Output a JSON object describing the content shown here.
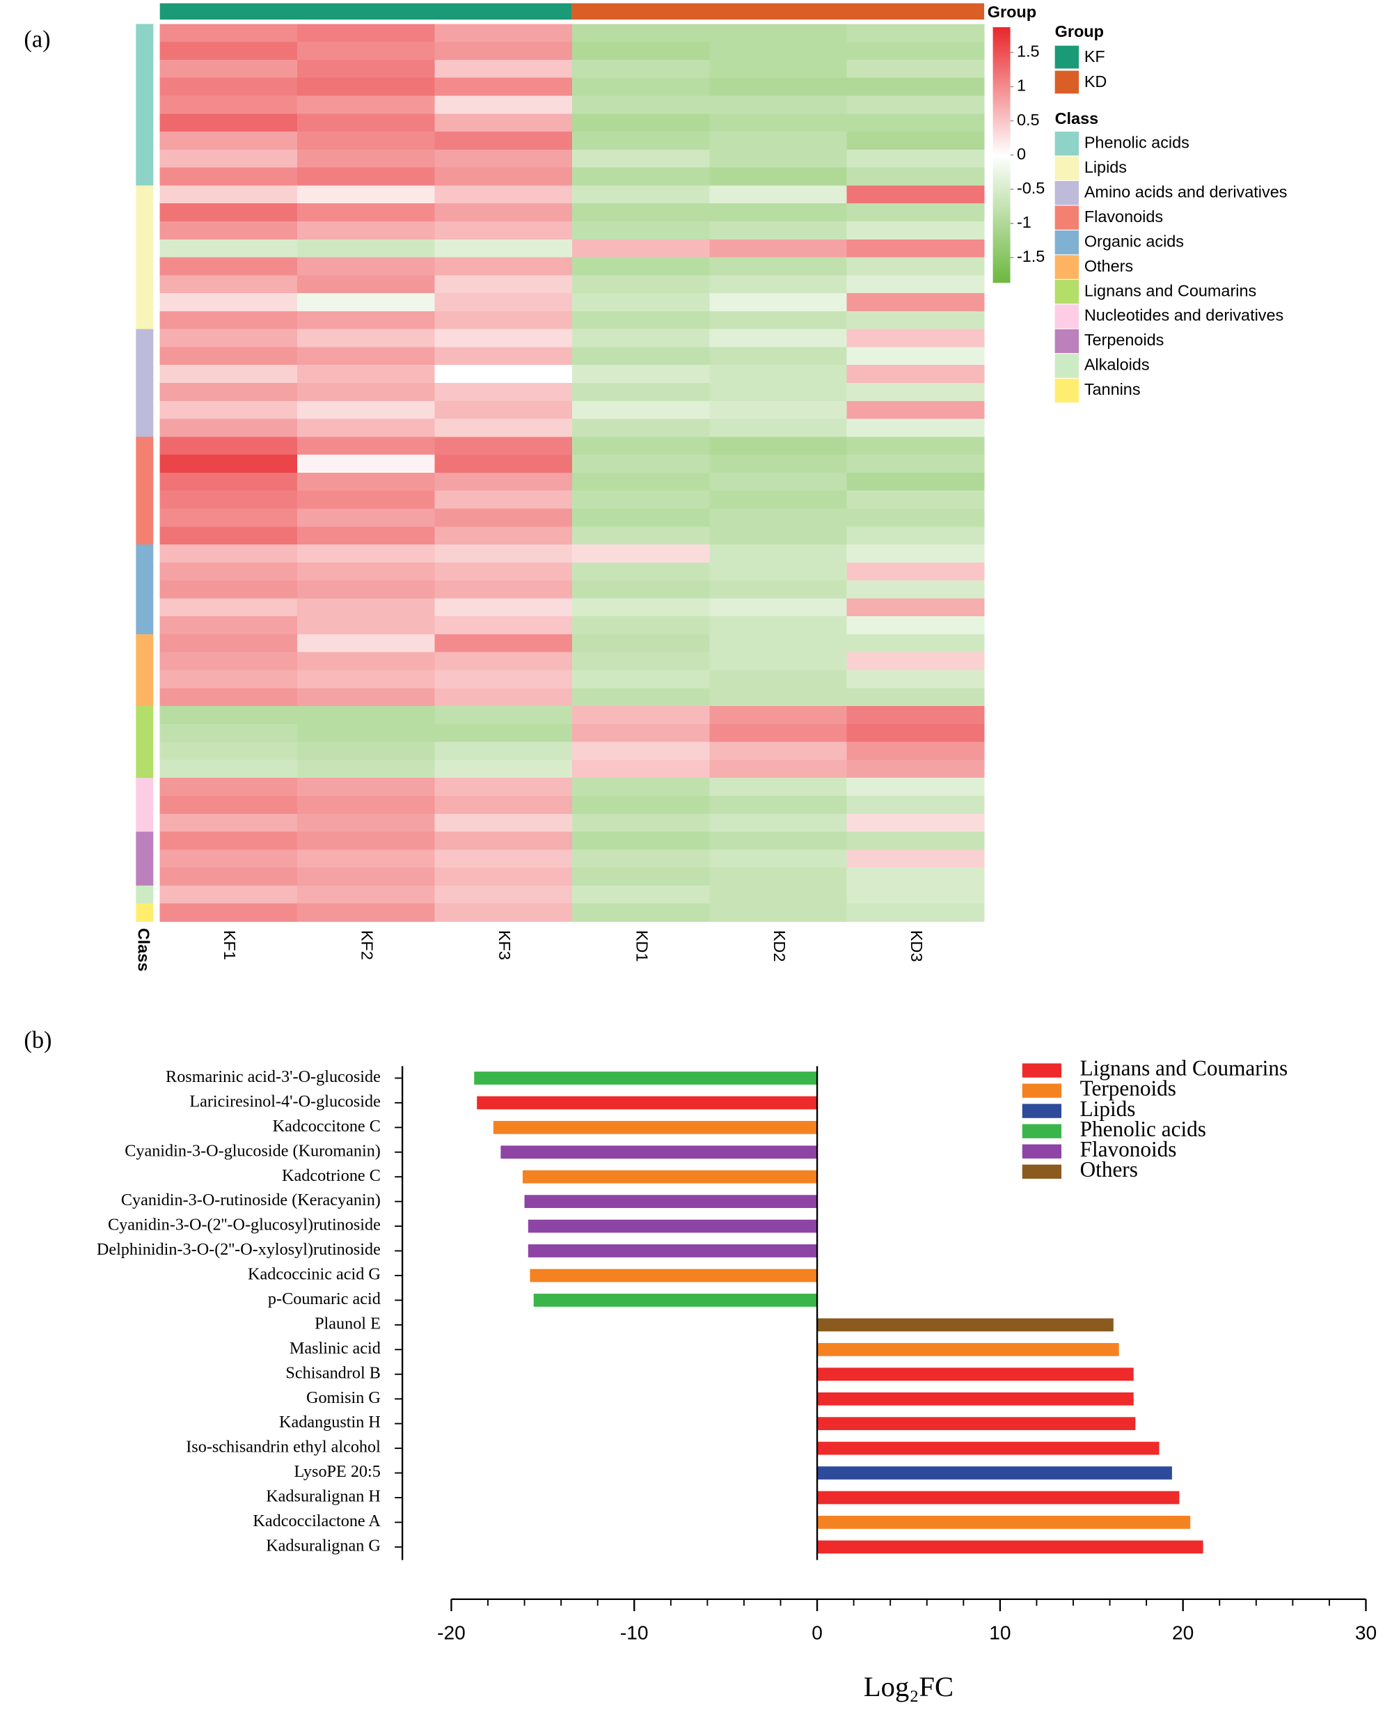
{
  "panel_labels": [
    "(a)",
    "(b)"
  ],
  "chart_data": [
    {
      "type": "heatmap",
      "group_title": "Group",
      "class_title": "Class",
      "groups": [
        {
          "name": "KF",
          "color": "#1a9a76",
          "columns": [
            "KF1",
            "KF2",
            "KF3"
          ]
        },
        {
          "name": "KD",
          "color": "#d95f27",
          "columns": [
            "KD1",
            "KD2",
            "KD3"
          ]
        }
      ],
      "zlim": [
        -1.87,
        1.87
      ],
      "zticks": [
        1.5,
        1,
        0.5,
        0,
        -0.5,
        -1,
        -1.5
      ],
      "colors": [
        "#6cb83f",
        "#ffffff",
        "#e8262a"
      ],
      "classes": [
        {
          "name": "Phenolic acids",
          "color": "#8dd3c7",
          "rows": [
            [
              1.0,
              1.1,
              0.8,
              -0.9,
              -0.9,
              -0.8
            ],
            [
              1.2,
              1.0,
              0.9,
              -1.0,
              -0.9,
              -0.9
            ],
            [
              0.9,
              1.1,
              0.5,
              -0.8,
              -0.9,
              -0.7
            ],
            [
              1.1,
              1.2,
              1.0,
              -0.9,
              -1.0,
              -1.0
            ],
            [
              1.0,
              0.9,
              0.3,
              -0.8,
              -0.8,
              -0.7
            ],
            [
              1.3,
              1.1,
              0.7,
              -1.0,
              -0.9,
              -0.9
            ],
            [
              0.8,
              1.0,
              1.1,
              -0.9,
              -0.8,
              -1.0
            ],
            [
              0.6,
              0.9,
              0.8,
              -0.6,
              -0.8,
              -0.6
            ],
            [
              1.0,
              1.1,
              0.9,
              -0.9,
              -1.0,
              -0.8
            ]
          ]
        },
        {
          "name": "Lipids",
          "color": "#f9f5b8",
          "rows": [
            [
              0.4,
              0.2,
              0.5,
              -0.6,
              -0.4,
              1.2
            ],
            [
              1.2,
              1.0,
              0.8,
              -0.9,
              -0.9,
              -0.8
            ],
            [
              0.9,
              0.7,
              0.6,
              -0.8,
              -0.7,
              -0.5
            ],
            [
              -0.5,
              -0.6,
              -0.4,
              0.6,
              0.8,
              1.0
            ],
            [
              1.0,
              0.8,
              0.7,
              -0.9,
              -0.8,
              -0.6
            ],
            [
              0.7,
              0.9,
              0.4,
              -0.7,
              -0.6,
              -0.4
            ],
            [
              0.3,
              -0.2,
              0.5,
              -0.6,
              -0.3,
              0.9
            ],
            [
              0.9,
              0.8,
              0.6,
              -0.8,
              -0.7,
              -0.6
            ]
          ]
        },
        {
          "name": "Amino acids and derivatives",
          "color": "#bebada",
          "rows": [
            [
              0.7,
              0.5,
              0.3,
              -0.6,
              -0.4,
              0.5
            ],
            [
              0.9,
              0.8,
              0.6,
              -0.8,
              -0.7,
              -0.3
            ],
            [
              0.4,
              0.6,
              0.0,
              -0.5,
              -0.6,
              0.6
            ],
            [
              0.8,
              0.7,
              0.5,
              -0.7,
              -0.6,
              -0.5
            ],
            [
              0.5,
              0.3,
              0.6,
              -0.4,
              -0.5,
              0.8
            ],
            [
              0.8,
              0.6,
              0.4,
              -0.7,
              -0.6,
              -0.4
            ]
          ]
        },
        {
          "name": "Flavonoids",
          "color": "#f48072",
          "rows": [
            [
              1.3,
              1.0,
              1.1,
              -0.9,
              -1.0,
              -0.9
            ],
            [
              1.6,
              0.1,
              1.2,
              -0.8,
              -0.9,
              -0.8
            ],
            [
              1.2,
              0.9,
              0.8,
              -0.9,
              -0.8,
              -1.0
            ],
            [
              1.1,
              1.0,
              0.6,
              -0.8,
              -0.9,
              -0.7
            ],
            [
              1.0,
              0.8,
              0.9,
              -0.9,
              -0.8,
              -0.8
            ],
            [
              1.2,
              1.0,
              0.7,
              -0.7,
              -0.8,
              -0.6
            ]
          ]
        },
        {
          "name": "Organic acids",
          "color": "#80b1d3",
          "rows": [
            [
              0.6,
              0.5,
              0.4,
              0.3,
              -0.6,
              -0.4
            ],
            [
              0.8,
              0.7,
              0.6,
              -0.7,
              -0.6,
              0.5
            ],
            [
              0.9,
              0.8,
              0.7,
              -0.8,
              -0.7,
              -0.5
            ],
            [
              0.5,
              0.6,
              0.3,
              -0.5,
              -0.4,
              0.7
            ],
            [
              0.8,
              0.6,
              0.5,
              -0.7,
              -0.6,
              -0.3
            ]
          ]
        },
        {
          "name": "Others",
          "color": "#fdb462",
          "rows": [
            [
              0.9,
              0.3,
              1.0,
              -0.8,
              -0.6,
              -0.6
            ],
            [
              0.8,
              0.7,
              0.6,
              -0.7,
              -0.6,
              0.4
            ],
            [
              0.7,
              0.6,
              0.5,
              -0.6,
              -0.7,
              -0.5
            ],
            [
              0.9,
              0.8,
              0.6,
              -0.8,
              -0.7,
              -0.7
            ]
          ]
        },
        {
          "name": "Lignans and Coumarins",
          "color": "#b3de69",
          "rows": [
            [
              -0.9,
              -0.9,
              -0.8,
              0.6,
              0.9,
              1.1
            ],
            [
              -0.8,
              -0.9,
              -0.9,
              0.7,
              1.0,
              1.2
            ],
            [
              -0.7,
              -0.8,
              -0.6,
              0.4,
              0.6,
              0.9
            ],
            [
              -0.6,
              -0.7,
              -0.5,
              0.5,
              0.7,
              0.8
            ]
          ]
        },
        {
          "name": "Nucleotides and derivatives",
          "color": "#fccde5",
          "rows": [
            [
              0.9,
              0.8,
              0.6,
              -0.8,
              -0.6,
              -0.4
            ],
            [
              1.0,
              0.9,
              0.7,
              -0.9,
              -0.8,
              -0.6
            ],
            [
              0.7,
              0.8,
              0.4,
              -0.7,
              -0.6,
              0.3
            ]
          ]
        },
        {
          "name": "Terpenoids",
          "color": "#bc80bd",
          "rows": [
            [
              1.0,
              0.9,
              0.7,
              -0.9,
              -0.8,
              -0.7
            ],
            [
              0.8,
              0.7,
              0.5,
              -0.7,
              -0.6,
              0.4
            ],
            [
              0.9,
              0.8,
              0.6,
              -0.8,
              -0.7,
              -0.5
            ]
          ]
        },
        {
          "name": "Alkaloids",
          "color": "#ccebc5",
          "rows": [
            [
              0.6,
              0.7,
              0.5,
              -0.6,
              -0.7,
              -0.5
            ]
          ]
        },
        {
          "name": "Tannins",
          "color": "#ffed6f",
          "rows": [
            [
              1.0,
              0.9,
              0.6,
              -0.8,
              -0.7,
              -0.6
            ]
          ]
        }
      ]
    },
    {
      "type": "bar",
      "orientation": "horizontal",
      "xlabel": "Log₂FC",
      "legend": "top-right",
      "categories": [
        "Rosmarinic acid-3'-O-glucoside",
        "Lariciresinol-4'-O-glucoside",
        "Kadcoccitone C",
        "Cyanidin-3-O-glucoside (Kuromanin)",
        "Kadcotrione C",
        "Cyanidin-3-O-rutinoside (Keracyanin)",
        "Cyanidin-3-O-(2''-O-glucosyl)rutinoside",
        "Delphinidin-3-O-(2''-O-xylosyl)rutinoside",
        "Kadcoccinic acid G",
        "p-Coumaric acid",
        "Plaunol E",
        "Maslinic acid",
        "Schisandrol B",
        "Gomisin G",
        "Kadangustin H",
        "Iso-schisandrin ethyl alcohol",
        "LysoPE 20:5",
        "Kadsuralignan H",
        "Kadcoccilactone A",
        "Kadsuralignan G"
      ],
      "series": [
        {
          "name": "Lignans and Coumarins",
          "color": "#ee2a2a",
          "values": [
            null,
            -18.6,
            null,
            null,
            null,
            null,
            null,
            null,
            null,
            null,
            null,
            null,
            17.3,
            17.3,
            17.4,
            18.7,
            null,
            19.8,
            null,
            21.1
          ]
        },
        {
          "name": "Terpenoids",
          "color": "#f58220",
          "values": [
            null,
            null,
            -17.7,
            null,
            -16.1,
            null,
            null,
            null,
            -15.7,
            null,
            null,
            16.5,
            null,
            null,
            null,
            null,
            null,
            null,
            20.4,
            null
          ]
        },
        {
          "name": "Lipids",
          "color": "#2e4a9b",
          "values": [
            null,
            null,
            null,
            null,
            null,
            null,
            null,
            null,
            null,
            null,
            null,
            null,
            null,
            null,
            null,
            null,
            19.4,
            null,
            null,
            null
          ]
        },
        {
          "name": "Phenolic acids",
          "color": "#3ab54a",
          "values": [
            -18.75,
            null,
            null,
            null,
            null,
            null,
            null,
            null,
            null,
            -15.5,
            null,
            null,
            null,
            null,
            null,
            null,
            null,
            null,
            null,
            null
          ]
        },
        {
          "name": "Flavonoids",
          "color": "#8e44a5",
          "values": [
            null,
            null,
            null,
            -17.3,
            null,
            -16.0,
            -15.8,
            -15.8,
            null,
            null,
            null,
            null,
            null,
            null,
            null,
            null,
            null,
            null,
            null,
            null
          ]
        },
        {
          "name": "Others",
          "color": "#8b5a1e",
          "values": [
            null,
            null,
            null,
            null,
            null,
            null,
            null,
            null,
            null,
            null,
            16.2,
            null,
            null,
            null,
            null,
            null,
            null,
            null,
            null,
            null
          ]
        }
      ],
      "xlim": [
        -20,
        30
      ],
      "xticks": [
        -20,
        -10,
        0,
        10,
        20,
        30
      ],
      "xminorticks": [
        -18,
        -16,
        -14,
        -12,
        -8,
        -6,
        -4,
        -2,
        2,
        4,
        6,
        8,
        12,
        14,
        16,
        18,
        22,
        24,
        26,
        28
      ]
    }
  ]
}
